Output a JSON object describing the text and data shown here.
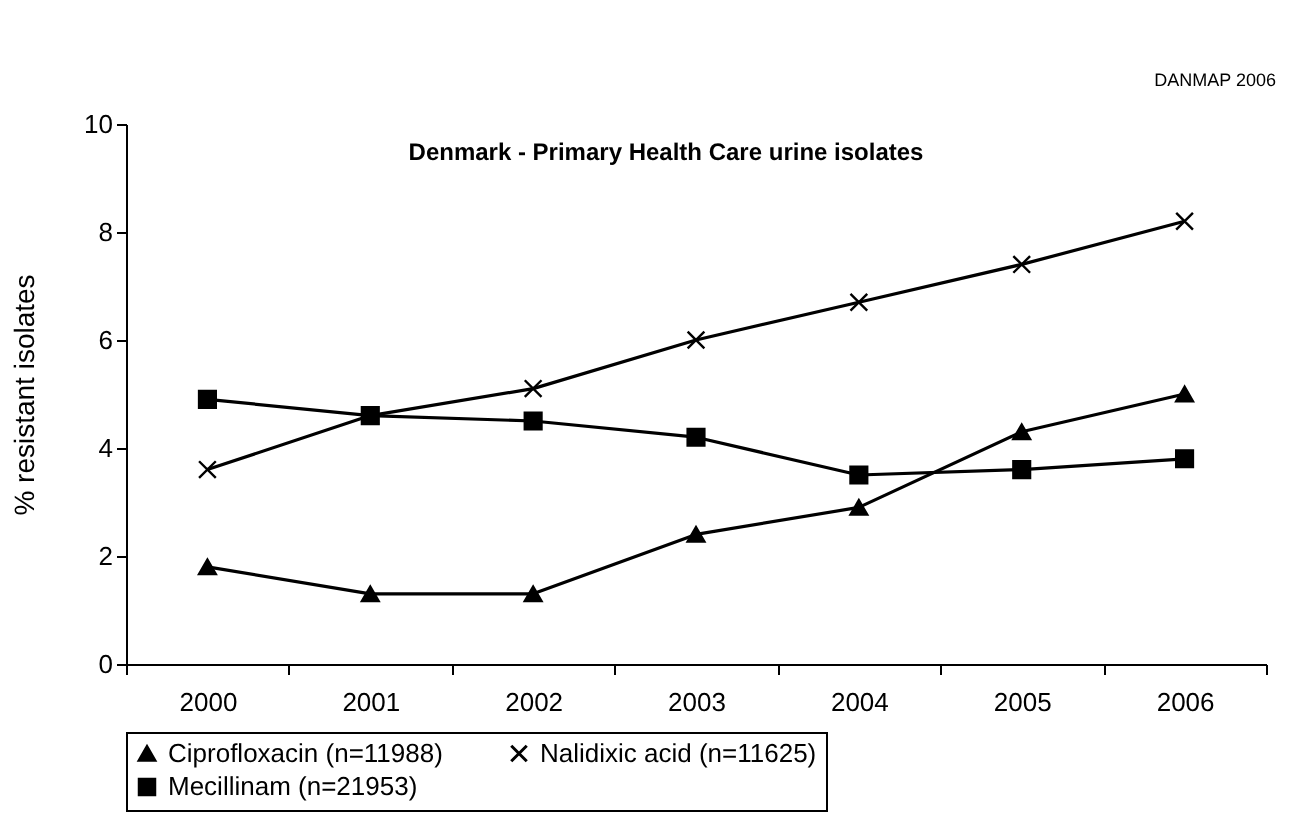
{
  "chart_data": {
    "type": "line",
    "title": "Denmark - Primary Health Care urine isolates",
    "ylabel": "% resistant isolates",
    "annotations": [
      "DANMAP 2006"
    ],
    "categories": [
      "2000",
      "2001",
      "2002",
      "2003",
      "2004",
      "2005",
      "2006"
    ],
    "series": [
      {
        "name": "Ciprofloxacin (n=11988)",
        "color": "#000000",
        "marker": "triangle",
        "values": [
          1.8,
          1.3,
          1.3,
          2.4,
          2.9,
          4.3,
          5.0
        ]
      },
      {
        "name": "Nalidixic acid (n=11625)",
        "color": "#000000",
        "marker": "cross",
        "values": [
          3.6,
          4.6,
          5.1,
          6.0,
          6.7,
          7.4,
          8.2
        ]
      },
      {
        "name": "Mecillinam (n=21953)",
        "color": "#000000",
        "marker": "square",
        "values": [
          4.9,
          4.6,
          4.5,
          4.2,
          3.5,
          3.6,
          3.8
        ]
      }
    ],
    "ylim": [
      0,
      10
    ],
    "yticks": [
      0,
      2,
      4,
      6,
      8,
      10
    ],
    "grid": false,
    "legend": "bottom",
    "line_style": "solid"
  }
}
